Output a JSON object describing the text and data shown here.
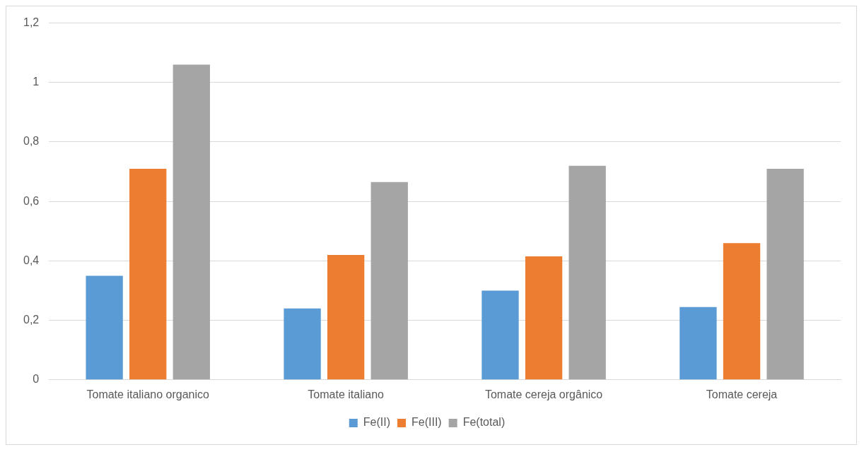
{
  "chart_data": {
    "type": "bar",
    "categories": [
      "Tomate italiano organico",
      "Tomate italiano",
      "Tomate cereja orgânico",
      "Tomate cereja"
    ],
    "series": [
      {
        "name": "Fe(II)",
        "color": "#5b9bd5",
        "values": [
          0.35,
          0.24,
          0.3,
          0.245
        ]
      },
      {
        "name": "Fe(III)",
        "color": "#ed7d31",
        "values": [
          0.71,
          0.42,
          0.415,
          0.46
        ]
      },
      {
        "name": "Fe(total)",
        "color": "#a5a5a5",
        "values": [
          1.06,
          0.665,
          0.72,
          0.71
        ]
      }
    ],
    "ylim": [
      0,
      1.2
    ],
    "yticks": [
      {
        "value": 0,
        "label": "0"
      },
      {
        "value": 0.2,
        "label": "0,2"
      },
      {
        "value": 0.4,
        "label": "0,4"
      },
      {
        "value": 0.6,
        "label": "0,6"
      },
      {
        "value": 0.8,
        "label": "0,8"
      },
      {
        "value": 1,
        "label": "1"
      },
      {
        "value": 1.2,
        "label": "1,2"
      }
    ],
    "grid": "y",
    "legend": "bottom"
  }
}
